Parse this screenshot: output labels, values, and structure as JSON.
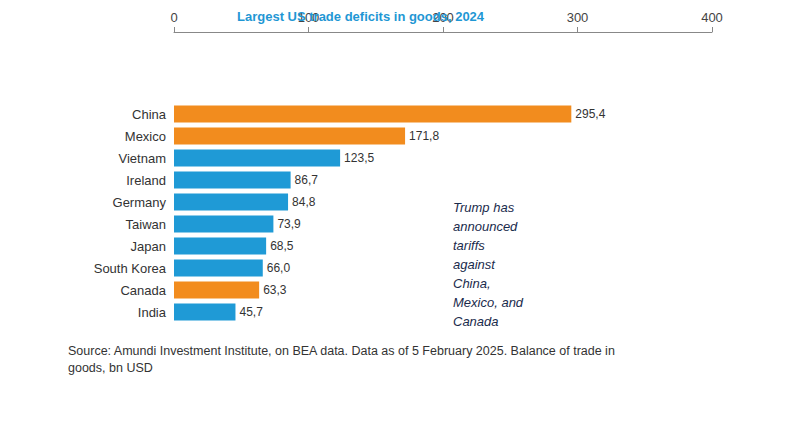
{
  "chart_data": {
    "type": "bar",
    "orientation": "horizontal",
    "title": "Largest US trade deficits in goods, 2024",
    "categories": [
      "China",
      "Mexico",
      "Vietnam",
      "Ireland",
      "Germany",
      "Taiwan",
      "Japan",
      "South Korea",
      "Canada",
      "India"
    ],
    "values": [
      295.4,
      171.8,
      123.5,
      86.7,
      84.8,
      73.9,
      68.5,
      66.0,
      63.3,
      45.7
    ],
    "value_labels": [
      "295,4",
      "171,8",
      "123,5",
      "86,7",
      "84,8",
      "73,9",
      "68,5",
      "66,0",
      "63,3",
      "45,7"
    ],
    "colors": [
      "#f28c1e",
      "#f28c1e",
      "#1f9ad6",
      "#1f9ad6",
      "#1f9ad6",
      "#1f9ad6",
      "#1f9ad6",
      "#1f9ad6",
      "#f28c1e",
      "#1f9ad6"
    ],
    "xlim": [
      0,
      400
    ],
    "xticks": [
      0,
      100,
      200,
      300,
      400
    ],
    "grid": false,
    "data_labels": true,
    "annotation": [
      "Trump has",
      "announced",
      "tariffs",
      "against",
      "China,",
      "Mexico, and",
      "Canada"
    ],
    "source": [
      "Source: Amundi Investment Institute, on BEA data. Data as of 5 February 2025. Balance of trade in",
      "goods, bn USD"
    ]
  }
}
